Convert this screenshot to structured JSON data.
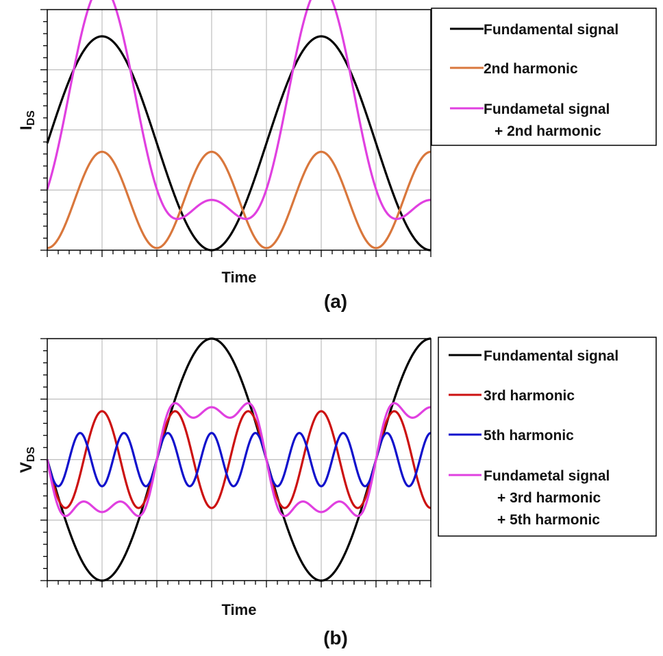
{
  "chart_data": [
    {
      "type": "line",
      "panel_label": "(a)",
      "xlabel": "Time",
      "ylabel": "I",
      "ylabel_sub": "DS",
      "grid": true,
      "legend_position": "right",
      "x_periods": 1.75,
      "xlim": [
        0,
        1.75
      ],
      "ylim": [
        -1,
        1.25
      ],
      "series": [
        {
          "name": "Fundamental signal",
          "color": "#000000",
          "kind": "fundamental",
          "amplitude": 1
        },
        {
          "name": "2nd harmonic",
          "color": "#d9773c",
          "kind": "harmonic",
          "order": 2,
          "amplitude": 0.45,
          "offset": 0.02
        },
        {
          "name_lines": [
            "Fundametal signal",
            "+ 2nd harmonic"
          ],
          "color": "#e040e0",
          "kind": "sum",
          "components": [
            1,
            2
          ],
          "amplitude": 1
        }
      ]
    },
    {
      "type": "line",
      "panel_label": "(b)",
      "xlabel": "Time",
      "ylabel": "V",
      "ylabel_sub": "DS",
      "grid": true,
      "legend_position": "right",
      "x_periods": 1.75,
      "xlim": [
        0,
        1.75
      ],
      "ylim": [
        -1,
        1
      ],
      "series": [
        {
          "name": "Fundamental signal",
          "color": "#000000",
          "kind": "fundamental",
          "amplitude": 1
        },
        {
          "name": "3rd harmonic",
          "color": "#cc1111",
          "kind": "harmonic",
          "order": 3,
          "amplitude": 0.4
        },
        {
          "name": "5th harmonic",
          "color": "#1111cc",
          "kind": "harmonic",
          "order": 5,
          "amplitude": 0.22
        },
        {
          "name_lines": [
            "Fundametal signal",
            "+ 3rd harmonic",
            "+ 5th harmonic"
          ],
          "color": "#e040e0",
          "kind": "sum",
          "components": [
            1,
            3,
            5
          ],
          "amplitude": 0.5
        }
      ]
    }
  ]
}
